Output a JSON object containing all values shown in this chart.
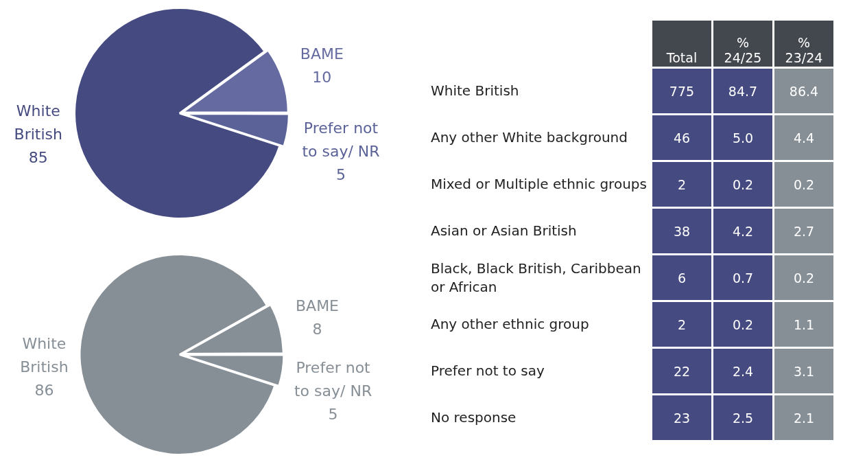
{
  "chart_data": [
    {
      "type": "pie",
      "categories": [
        "White British",
        "BAME",
        "Prefer not to say/ NR"
      ],
      "values": [
        85,
        10,
        5
      ],
      "colors": [
        "#454a80",
        "#656ba1",
        "#5b6298"
      ],
      "data_labels": true
    },
    {
      "type": "pie",
      "categories": [
        "White British",
        "BAME",
        "Prefer not to say/ NR"
      ],
      "values": [
        86,
        8,
        5
      ],
      "colors": [
        "#878f96",
        "#878f96",
        "#878f96"
      ],
      "data_labels": true
    },
    {
      "type": "other",
      "data_labels": true,
      "categories": [
        "White British",
        "Any other White background",
        "Mixed or Multiple ethnic groups",
        "Asian or Asian British",
        "Black, Black British, Caribbean or African",
        "Any other ethnic group",
        "Prefer not to say",
        "No response"
      ],
      "series": [
        {
          "name": "Total",
          "color": "#454a80",
          "values": [
            775,
            46,
            2,
            38,
            6,
            2,
            22,
            23
          ]
        },
        {
          "name": "% 24/25",
          "color": "#454a80",
          "values": [
            84.7,
            5.0,
            0.2,
            4.2,
            0.7,
            0.2,
            2.4,
            2.5
          ],
          "value_labels": [
            "84.7",
            "5.0",
            "0.2",
            "4.2",
            "0.7",
            "0.2",
            "2.4",
            "2.5"
          ]
        },
        {
          "name": "% 23/24",
          "color": "#878f96",
          "values": [
            86.4,
            4.4,
            0.2,
            2.7,
            0.2,
            1.1,
            3.1,
            2.1
          ]
        }
      ]
    }
  ]
}
